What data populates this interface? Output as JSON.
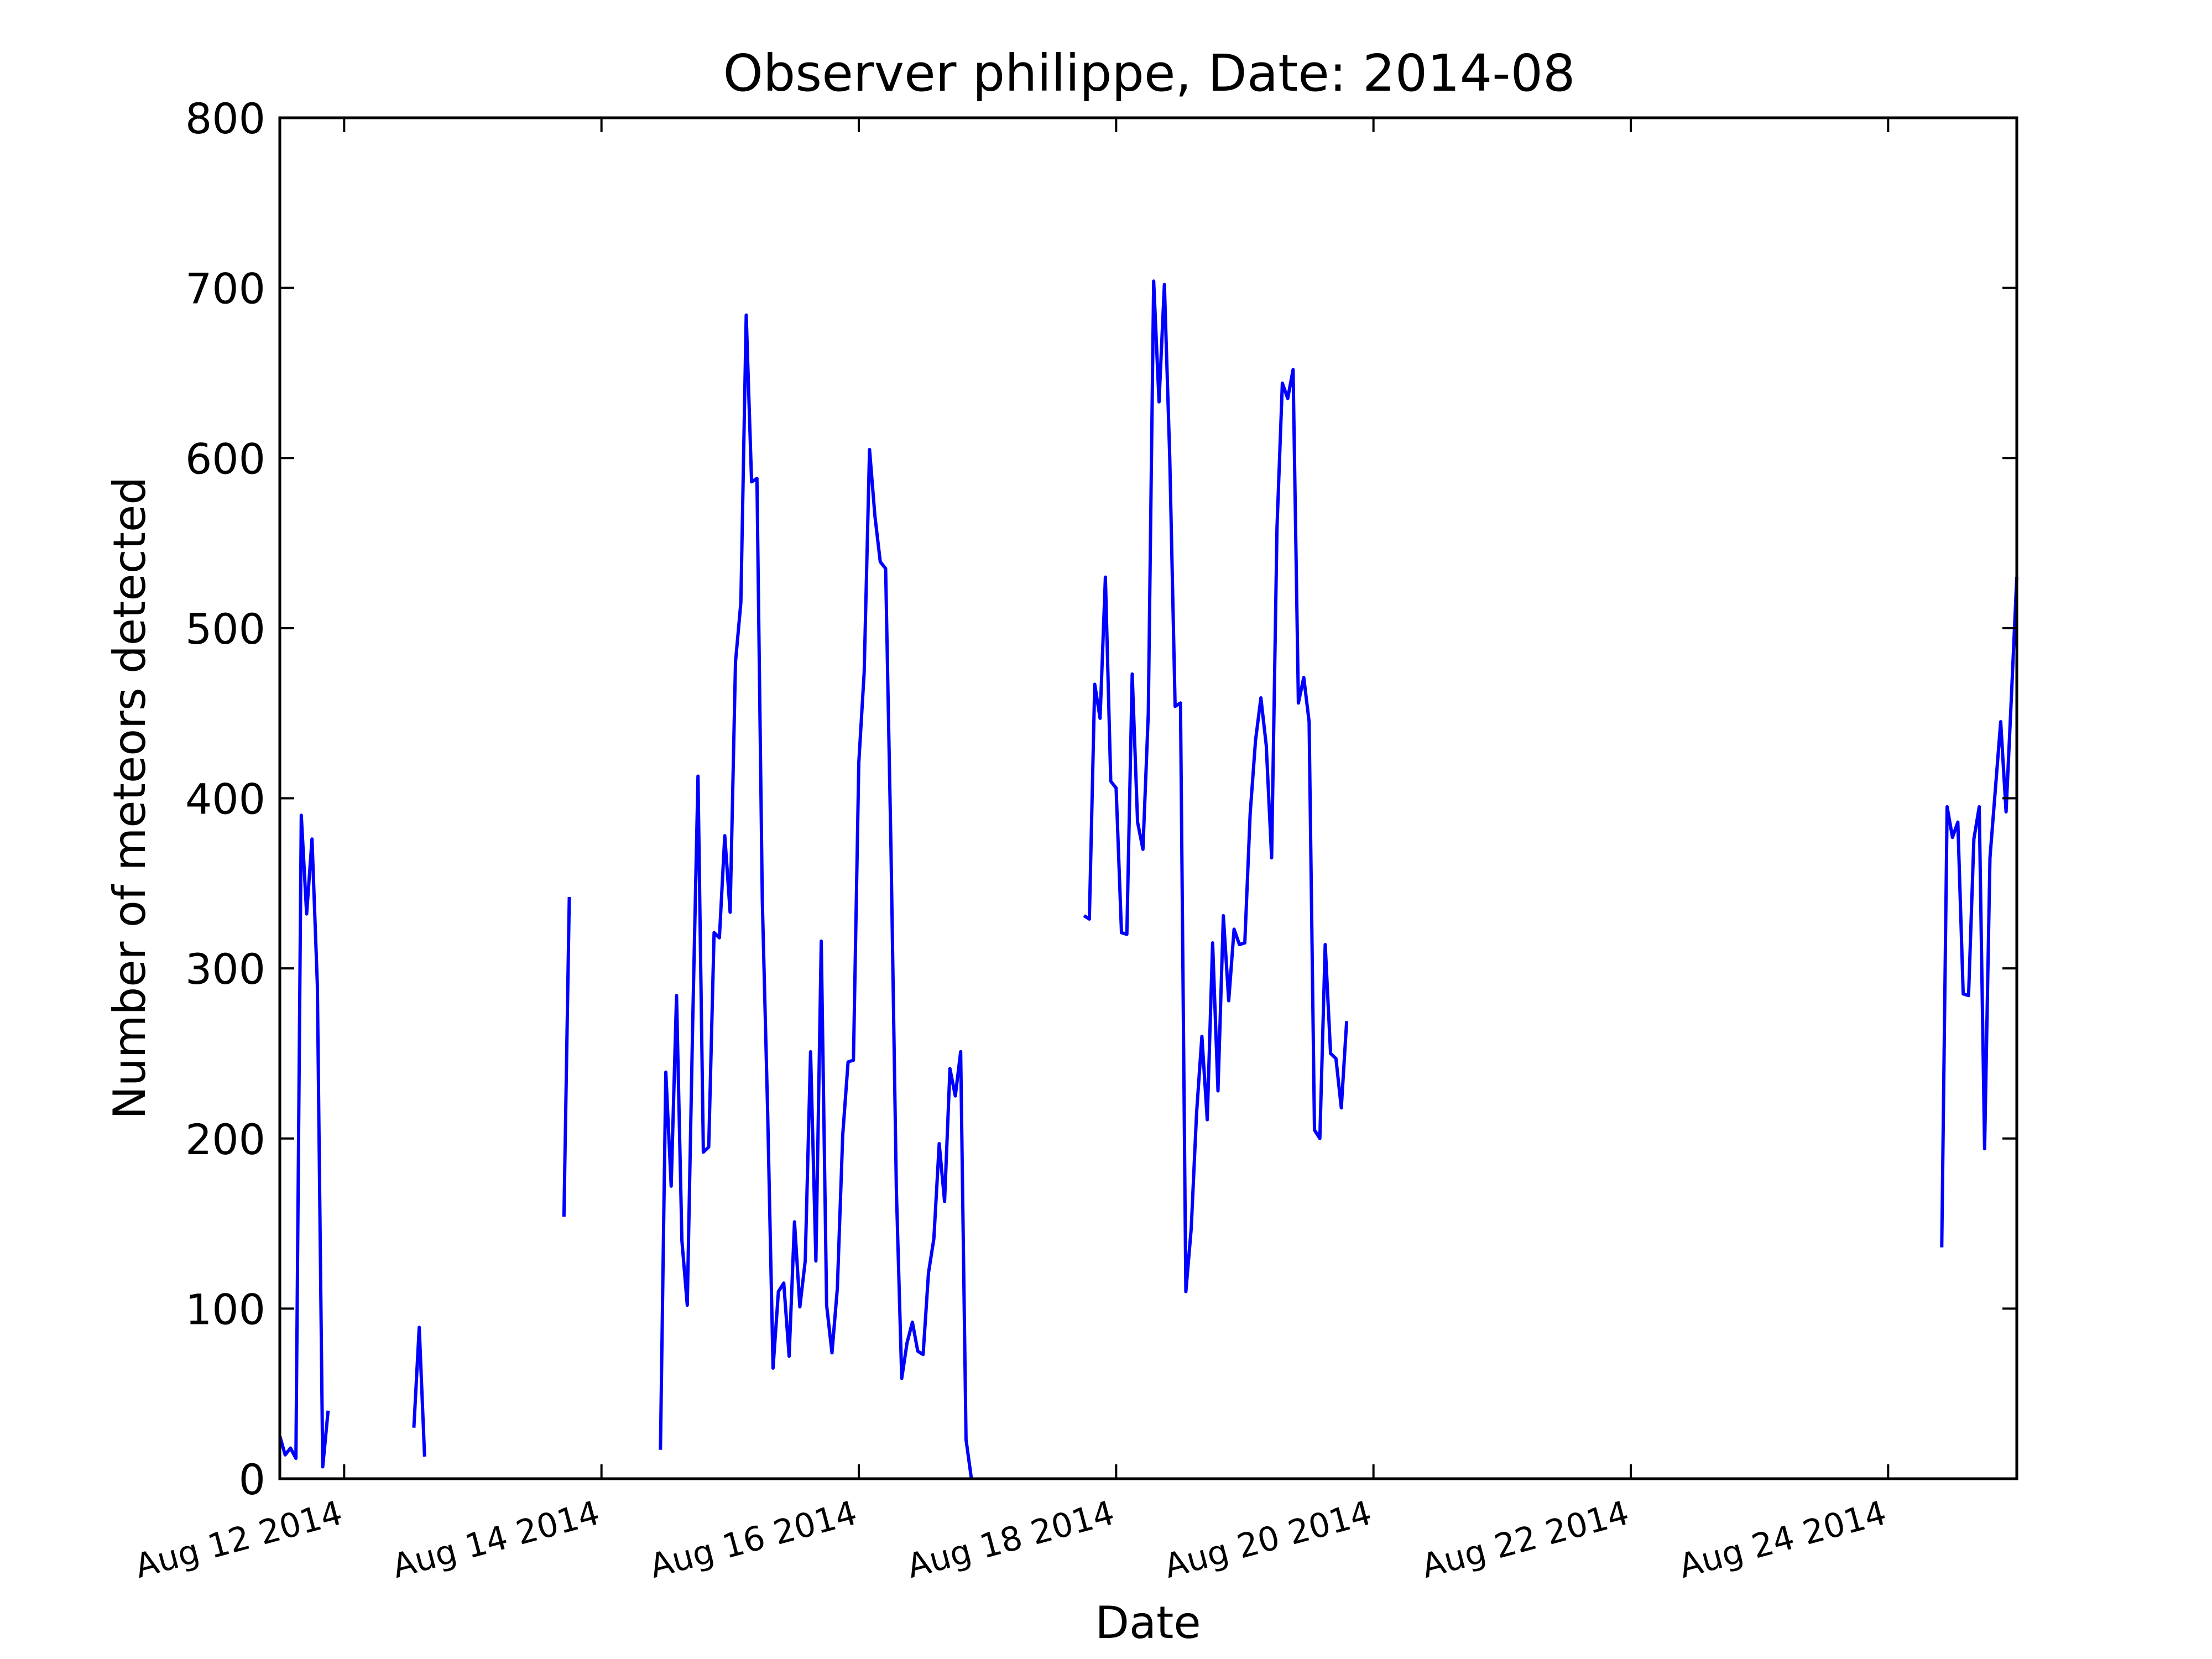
{
  "chart_data": {
    "type": "line",
    "title": "Observer philippe, Date: 2014-08",
    "xlabel": "Date",
    "ylabel": "Number of meteors detected",
    "xlim": [
      "2014-08-11 12:00",
      "2014-08-25 00:00"
    ],
    "ylim": [
      0,
      800
    ],
    "grid": false,
    "line_color": "#0000ff",
    "x_ticks": [
      {
        "x": "2014-08-12 00:00",
        "label": "Aug 12 2014"
      },
      {
        "x": "2014-08-14 00:00",
        "label": "Aug 14 2014"
      },
      {
        "x": "2014-08-16 00:00",
        "label": "Aug 16 2014"
      },
      {
        "x": "2014-08-18 00:00",
        "label": "Aug 18 2014"
      },
      {
        "x": "2014-08-20 00:00",
        "label": "Aug 20 2014"
      },
      {
        "x": "2014-08-22 00:00",
        "label": "Aug 22 2014"
      },
      {
        "x": "2014-08-24 00:00",
        "label": "Aug 24 2014"
      }
    ],
    "y_ticks": [
      0,
      100,
      200,
      300,
      400,
      500,
      600,
      700,
      800
    ],
    "series": [
      {
        "segments": [
          [
            [
              "2014-08-11 12:00",
              25
            ],
            [
              "2014-08-11 13:00",
              14
            ],
            [
              "2014-08-11 14:00",
              18
            ],
            [
              "2014-08-11 15:00",
              12
            ],
            [
              "2014-08-11 16:00",
              390
            ],
            [
              "2014-08-11 17:00",
              332
            ],
            [
              "2014-08-11 18:00",
              376
            ],
            [
              "2014-08-11 19:00",
              290
            ],
            [
              "2014-08-11 20:00",
              7
            ],
            [
              "2014-08-11 21:00",
              40
            ]
          ],
          [
            [
              "2014-08-12 13:00",
              30
            ],
            [
              "2014-08-12 14:00",
              89
            ],
            [
              "2014-08-12 15:00",
              13
            ]
          ],
          [
            [
              "2014-08-13 17:00",
              154
            ],
            [
              "2014-08-13 18:00",
              342
            ]
          ],
          [
            [
              "2014-08-14 11:00",
              17
            ],
            [
              "2014-08-14 12:00",
              239
            ],
            [
              "2014-08-14 13:00",
              172
            ],
            [
              "2014-08-14 14:00",
              284
            ],
            [
              "2014-08-14 15:00",
              140
            ],
            [
              "2014-08-14 16:00",
              102
            ],
            [
              "2014-08-14 17:00",
              266
            ],
            [
              "2014-08-14 18:00",
              413
            ],
            [
              "2014-08-14 19:00",
              192
            ],
            [
              "2014-08-14 20:00",
              195
            ],
            [
              "2014-08-14 21:00",
              321
            ],
            [
              "2014-08-14 22:00",
              318
            ],
            [
              "2014-08-14 23:00",
              378
            ],
            [
              "2014-08-15 00:00",
              333
            ],
            [
              "2014-08-15 01:00",
              480
            ],
            [
              "2014-08-15 02:00",
              515
            ],
            [
              "2014-08-15 03:00",
              684
            ],
            [
              "2014-08-15 04:00",
              586
            ],
            [
              "2014-08-15 05:00",
              588
            ],
            [
              "2014-08-15 06:00",
              340
            ],
            [
              "2014-08-15 07:00",
              215
            ],
            [
              "2014-08-15 08:00",
              65
            ],
            [
              "2014-08-15 09:00",
              110
            ],
            [
              "2014-08-15 10:00",
              115
            ],
            [
              "2014-08-15 11:00",
              72
            ],
            [
              "2014-08-15 12:00",
              151
            ],
            [
              "2014-08-15 13:00",
              101
            ],
            [
              "2014-08-15 14:00",
              128
            ],
            [
              "2014-08-15 15:00",
              251
            ],
            [
              "2014-08-15 16:00",
              128
            ],
            [
              "2014-08-15 17:00",
              316
            ],
            [
              "2014-08-15 18:00",
              102
            ],
            [
              "2014-08-15 19:00",
              74
            ],
            [
              "2014-08-15 20:00",
              112
            ],
            [
              "2014-08-15 21:00",
              202
            ],
            [
              "2014-08-15 22:00",
              245
            ],
            [
              "2014-08-15 23:00",
              246
            ],
            [
              "2014-08-16 00:00",
              421
            ],
            [
              "2014-08-16 01:00",
              474
            ],
            [
              "2014-08-16 02:00",
              605
            ],
            [
              "2014-08-16 03:00",
              566
            ],
            [
              "2014-08-16 04:00",
              539
            ],
            [
              "2014-08-16 05:00",
              535
            ],
            [
              "2014-08-16 06:00",
              370
            ],
            [
              "2014-08-16 07:00",
              170
            ],
            [
              "2014-08-16 08:00",
              59
            ],
            [
              "2014-08-16 09:00",
              80
            ],
            [
              "2014-08-16 10:00",
              92
            ],
            [
              "2014-08-16 11:00",
              75
            ],
            [
              "2014-08-16 12:00",
              73
            ],
            [
              "2014-08-16 13:00",
              121
            ],
            [
              "2014-08-16 14:00",
              141
            ],
            [
              "2014-08-16 15:00",
              197
            ],
            [
              "2014-08-16 16:00",
              163
            ],
            [
              "2014-08-16 17:00",
              241
            ],
            [
              "2014-08-16 18:00",
              225
            ],
            [
              "2014-08-16 19:00",
              251
            ],
            [
              "2014-08-16 20:00",
              23
            ],
            [
              "2014-08-16 21:00",
              0
            ]
          ],
          [
            [
              "2014-08-17 18:00",
              331
            ],
            [
              "2014-08-17 19:00",
              329
            ],
            [
              "2014-08-17 20:00",
              467
            ],
            [
              "2014-08-17 21:00",
              447
            ],
            [
              "2014-08-17 22:00",
              530
            ],
            [
              "2014-08-17 23:00",
              410
            ],
            [
              "2014-08-18 00:00",
              406
            ],
            [
              "2014-08-18 01:00",
              321
            ],
            [
              "2014-08-18 02:00",
              320
            ],
            [
              "2014-08-18 03:00",
              473
            ],
            [
              "2014-08-18 04:00",
              386
            ],
            [
              "2014-08-18 05:00",
              370
            ],
            [
              "2014-08-18 06:00",
              450
            ],
            [
              "2014-08-18 07:00",
              704
            ],
            [
              "2014-08-18 08:00",
              633
            ],
            [
              "2014-08-18 09:00",
              702
            ],
            [
              "2014-08-18 10:00",
              600
            ],
            [
              "2014-08-18 11:00",
              454
            ],
            [
              "2014-08-18 12:00",
              456
            ],
            [
              "2014-08-18 13:00",
              110
            ],
            [
              "2014-08-18 14:00",
              147
            ],
            [
              "2014-08-18 15:00",
              215
            ],
            [
              "2014-08-18 16:00",
              260
            ],
            [
              "2014-08-18 17:00",
              211
            ],
            [
              "2014-08-18 18:00",
              315
            ],
            [
              "2014-08-18 19:00",
              228
            ],
            [
              "2014-08-18 20:00",
              331
            ],
            [
              "2014-08-18 21:00",
              281
            ],
            [
              "2014-08-18 22:00",
              323
            ],
            [
              "2014-08-18 23:00",
              314
            ],
            [
              "2014-08-19 00:00",
              315
            ],
            [
              "2014-08-19 01:00",
              391
            ],
            [
              "2014-08-19 02:00",
              434
            ],
            [
              "2014-08-19 03:00",
              459
            ],
            [
              "2014-08-19 04:00",
              431
            ],
            [
              "2014-08-19 05:00",
              365
            ],
            [
              "2014-08-19 06:00",
              559
            ],
            [
              "2014-08-19 07:00",
              644
            ],
            [
              "2014-08-19 08:00",
              635
            ],
            [
              "2014-08-19 09:00",
              652
            ],
            [
              "2014-08-19 10:00",
              456
            ],
            [
              "2014-08-19 11:00",
              471
            ],
            [
              "2014-08-19 12:00",
              445
            ],
            [
              "2014-08-19 13:00",
              205
            ],
            [
              "2014-08-19 14:00",
              200
            ],
            [
              "2014-08-19 15:00",
              314
            ],
            [
              "2014-08-19 16:00",
              250
            ],
            [
              "2014-08-19 17:00",
              247
            ],
            [
              "2014-08-19 18:00",
              218
            ],
            [
              "2014-08-19 19:00",
              269
            ]
          ],
          [
            [
              "2014-08-24 10:00",
              136
            ],
            [
              "2014-08-24 11:00",
              395
            ],
            [
              "2014-08-24 12:00",
              377
            ],
            [
              "2014-08-24 13:00",
              386
            ],
            [
              "2014-08-24 14:00",
              285
            ],
            [
              "2014-08-24 15:00",
              284
            ],
            [
              "2014-08-24 16:00",
              376
            ],
            [
              "2014-08-24 17:00",
              395
            ],
            [
              "2014-08-24 18:00",
              194
            ],
            [
              "2014-08-24 19:00",
              365
            ],
            [
              "2014-08-24 20:00",
              405
            ],
            [
              "2014-08-24 21:00",
              445
            ],
            [
              "2014-08-24 22:00",
              392
            ],
            [
              "2014-08-24 23:00",
              460
            ],
            [
              "2014-08-25 00:00",
              530
            ]
          ]
        ]
      }
    ]
  }
}
